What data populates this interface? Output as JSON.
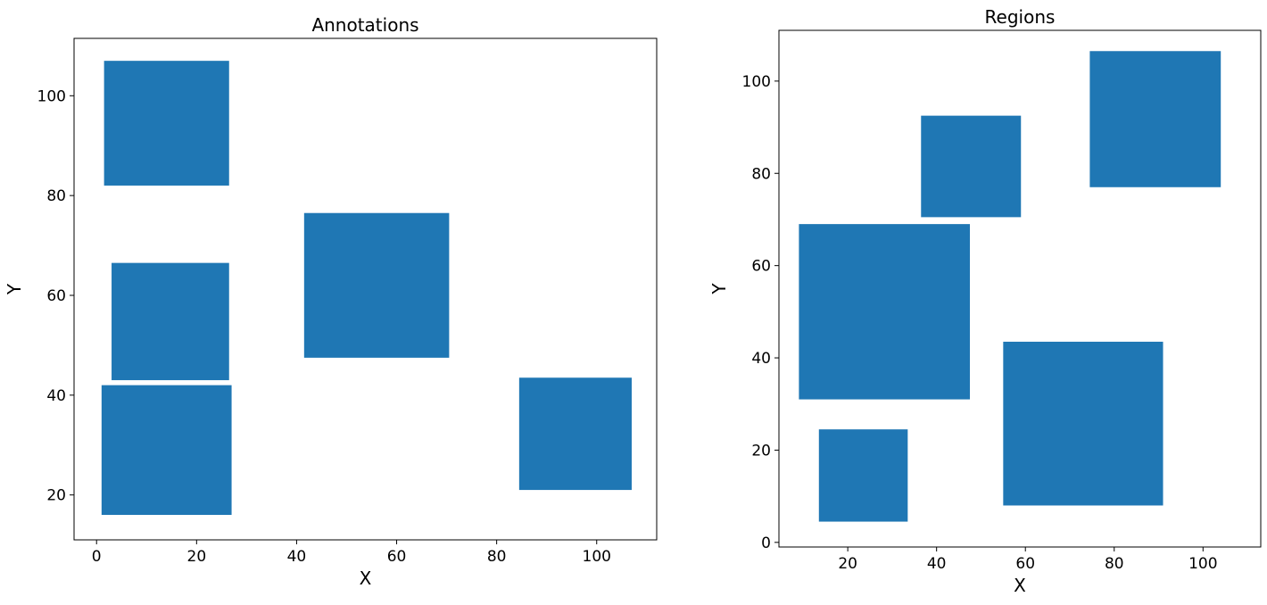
{
  "chart_data": [
    {
      "type": "rectangles",
      "title": "Annotations",
      "xlabel": "X",
      "ylabel": "Y",
      "xlim": [
        -4.5,
        112
      ],
      "ylim": [
        11,
        111.5
      ],
      "xticks": [
        0,
        20,
        40,
        60,
        80,
        100
      ],
      "yticks": [
        20,
        40,
        60,
        80,
        100
      ],
      "grid": false,
      "color": "#1f77b4",
      "rects": [
        {
          "x0": 1.5,
          "x1": 26.5,
          "y0": 82,
          "y1": 107
        },
        {
          "x0": 3,
          "x1": 26.5,
          "y0": 43,
          "y1": 66.5
        },
        {
          "x0": 1,
          "x1": 27,
          "y0": 16,
          "y1": 42
        },
        {
          "x0": 41.5,
          "x1": 70.5,
          "y0": 47.5,
          "y1": 76.5
        },
        {
          "x0": 84.5,
          "x1": 107,
          "y0": 21,
          "y1": 43.5
        }
      ]
    },
    {
      "type": "rectangles",
      "title": "Regions",
      "xlabel": "X",
      "ylabel": "Y",
      "xlim": [
        4.5,
        113
      ],
      "ylim": [
        -1,
        111
      ],
      "xticks": [
        20,
        40,
        60,
        80,
        100
      ],
      "yticks": [
        0,
        20,
        40,
        60,
        80,
        100
      ],
      "grid": false,
      "color": "#1f77b4",
      "rects": [
        {
          "x0": 74.5,
          "x1": 104,
          "y0": 77,
          "y1": 106.5
        },
        {
          "x0": 36.5,
          "x1": 59,
          "y0": 70.5,
          "y1": 92.5
        },
        {
          "x0": 9,
          "x1": 47.5,
          "y0": 31,
          "y1": 69
        },
        {
          "x0": 55,
          "x1": 91,
          "y0": 8,
          "y1": 43.5
        },
        {
          "x0": 13.5,
          "x1": 33.5,
          "y0": 4.5,
          "y1": 24.5
        }
      ]
    }
  ]
}
